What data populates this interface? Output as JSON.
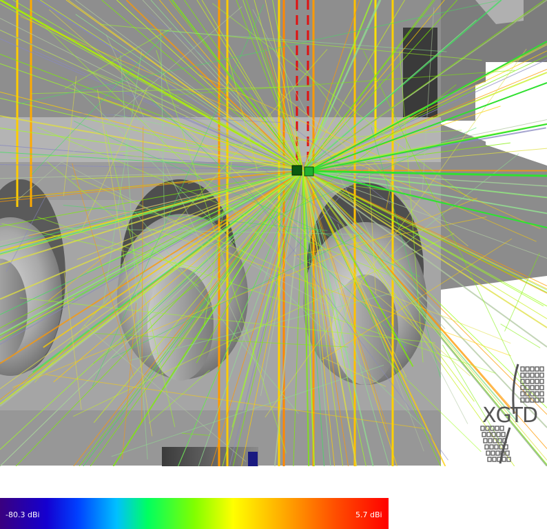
{
  "viewer": {
    "logo_text": "XGTD",
    "colorbar": {
      "min_label": "-80.3 dBi",
      "max_label": "5.7 dBi",
      "colors": [
        "#3a007f",
        "#1400d0",
        "#0040ff",
        "#00c0ff",
        "#00ff60",
        "#80ff00",
        "#ffff00",
        "#ffb000",
        "#ff5000",
        "#ff0000"
      ]
    }
  },
  "icons": {
    "logo": "xgtd-logo-icon",
    "transmitter": "transmitter-marker-icon",
    "receiver": "receiver-marker-icon"
  }
}
